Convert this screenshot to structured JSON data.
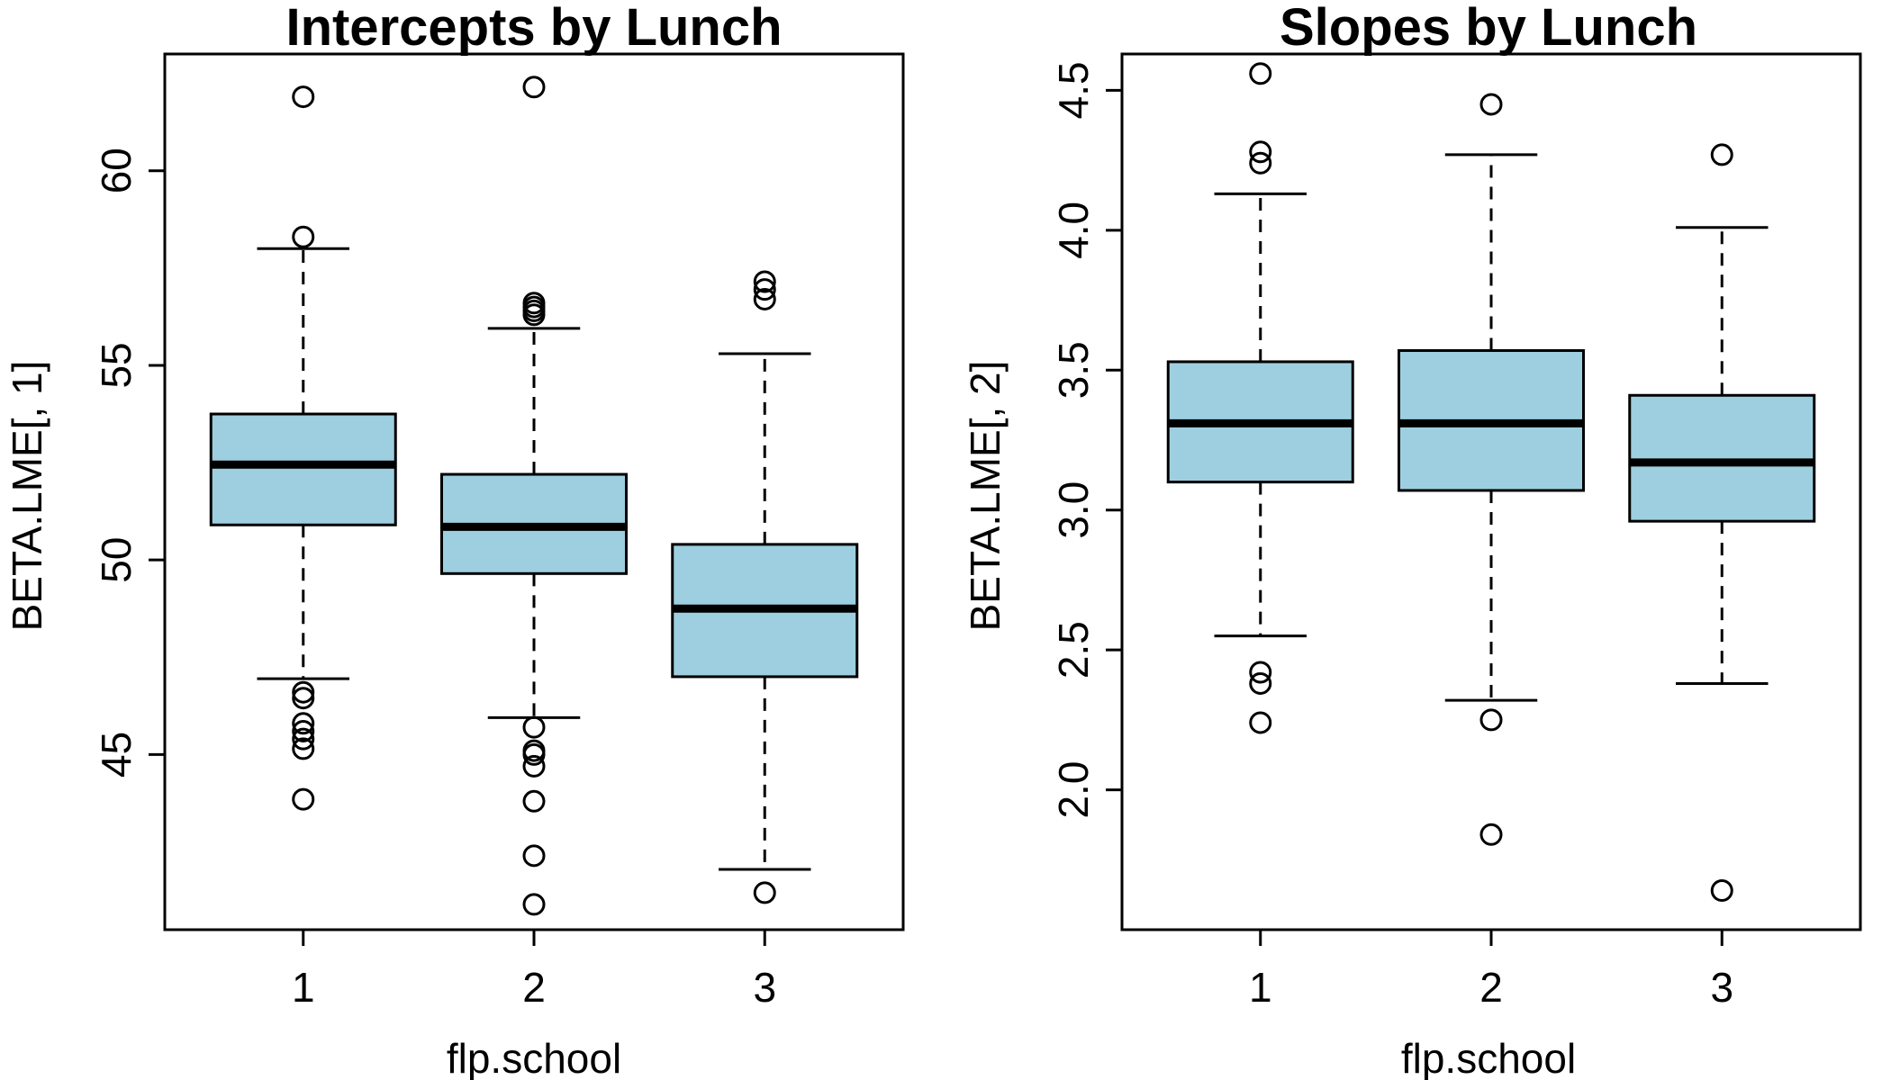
{
  "chart_data": [
    {
      "type": "boxplot",
      "title": "Intercepts by Lunch",
      "xlabel": "flp.school",
      "ylabel": "BETA.LME[, 1]",
      "ylim": [
        40.5,
        63.0
      ],
      "yticks": [
        45,
        50,
        55,
        60
      ],
      "categories": [
        "1",
        "2",
        "3"
      ],
      "box_color": "#9ecfe0",
      "boxes": [
        {
          "category": "1",
          "whisker_low": 46.95,
          "q1": 50.9,
          "median": 52.45,
          "q3": 53.75,
          "whisker_high": 58.0,
          "outliers": [
            61.9,
            58.3,
            46.6,
            46.45,
            45.8,
            45.6,
            45.4,
            45.15,
            43.85
          ]
        },
        {
          "category": "2",
          "whisker_low": 45.95,
          "q1": 49.65,
          "median": 50.85,
          "q3": 52.2,
          "whisker_high": 55.95,
          "outliers": [
            62.15,
            56.6,
            56.5,
            56.4,
            56.3,
            45.7,
            45.1,
            45.0,
            44.7,
            43.8,
            42.4,
            41.15
          ]
        },
        {
          "category": "3",
          "whisker_low": 42.05,
          "q1": 47.0,
          "median": 48.75,
          "q3": 50.4,
          "whisker_high": 55.3,
          "outliers": [
            57.15,
            56.95,
            56.7,
            41.45
          ]
        }
      ]
    },
    {
      "type": "boxplot",
      "title": "Slopes by Lunch",
      "xlabel": "flp.school",
      "ylabel": "BETA.LME[, 2]",
      "ylim": [
        1.5,
        4.63
      ],
      "yticks": [
        2.0,
        2.5,
        3.0,
        3.5,
        4.0,
        4.5
      ],
      "ytick_labels": [
        "2.0",
        "2.5",
        "3.0",
        "3.5",
        "4.0",
        "4.5"
      ],
      "categories": [
        "1",
        "2",
        "3"
      ],
      "box_color": "#9ecfe0",
      "boxes": [
        {
          "category": "1",
          "whisker_low": 2.55,
          "q1": 3.1,
          "median": 3.31,
          "q3": 3.53,
          "whisker_high": 4.13,
          "outliers": [
            4.56,
            4.28,
            4.24,
            2.42,
            2.38,
            2.24
          ]
        },
        {
          "category": "2",
          "whisker_low": 2.32,
          "q1": 3.07,
          "median": 3.31,
          "q3": 3.57,
          "whisker_high": 4.27,
          "outliers": [
            4.45,
            2.25,
            1.84
          ]
        },
        {
          "category": "3",
          "whisker_low": 2.38,
          "q1": 2.96,
          "median": 3.17,
          "q3": 3.41,
          "whisker_high": 4.01,
          "outliers": [
            4.27,
            1.64
          ]
        }
      ]
    }
  ]
}
